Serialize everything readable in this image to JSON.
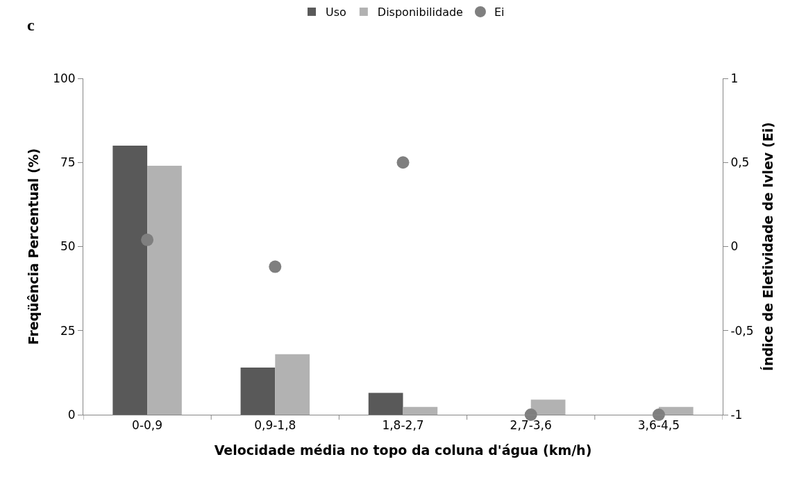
{
  "chart_data": {
    "type": "bar",
    "xlabel": "Velocidade média no topo da coluna d'água (km/h)",
    "ylabel": "Freqüência Percentual (%)",
    "y2label": "Índice de Eletividade de Ivlev (Ei)",
    "annotations": [
      "c"
    ],
    "categories": [
      "0-0,9",
      "0,9-1,8",
      "1,8-2,7",
      "2,7-3,6",
      "3,6-4,5"
    ],
    "series": [
      {
        "name": "Uso",
        "color": "#595959",
        "values": [
          80,
          14,
          6.5,
          0,
          0
        ]
      },
      {
        "name": "Disponibilidade",
        "color": "#b2b2b2",
        "values": [
          74,
          18,
          2.3,
          4.5,
          2.3
        ]
      },
      {
        "name": "Ei",
        "type": "scatter",
        "axis": "y2",
        "color": "#7f7f7f",
        "marker": "circle",
        "values": [
          0.04,
          -0.12,
          0.5,
          -1,
          -1
        ]
      }
    ],
    "ylim": [
      0,
      100
    ],
    "yticks": [
      0,
      25,
      50,
      75,
      100
    ],
    "y2lim": [
      -1,
      1
    ],
    "y2ticks": [
      {
        "value": -1,
        "label": "-1"
      },
      {
        "value": -0.5,
        "label": "-0,5"
      },
      {
        "value": 0,
        "label": "0"
      },
      {
        "value": 0.5,
        "label": "0,5"
      },
      {
        "value": 1,
        "label": "1"
      }
    ],
    "legend": "top"
  }
}
